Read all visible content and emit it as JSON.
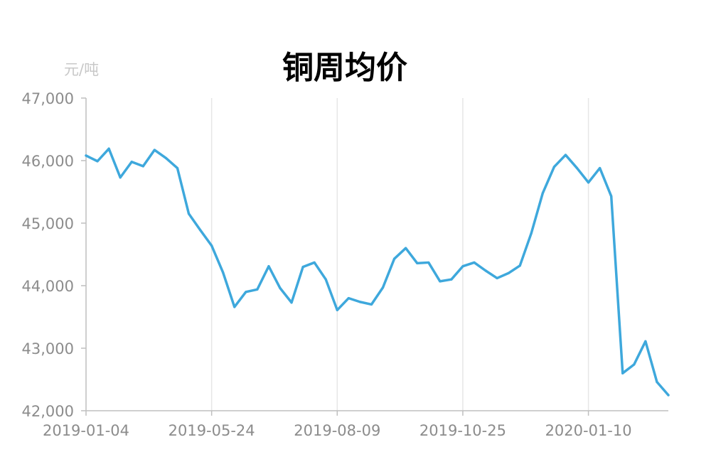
{
  "chart_data": {
    "type": "line",
    "title": "铜周均价",
    "ylabel": "元/吨",
    "xlabel": "",
    "ylim": [
      42000,
      47000
    ],
    "yticks": [
      42000,
      43000,
      44000,
      45000,
      46000,
      47000
    ],
    "ytick_labels": [
      "42,000",
      "43,000",
      "44,000",
      "45,000",
      "46,000",
      "47,000"
    ],
    "xtick_labels": [
      "2019-01-04",
      "2019-05-24",
      "2019-08-09",
      "2019-10-25",
      "2020-01-10"
    ],
    "xtick_index": [
      0,
      11,
      22,
      33,
      44
    ],
    "grid": "vertical",
    "legend": "none",
    "color": "#3ea8dc",
    "series": [
      {
        "values": [
          46080,
          45990,
          46190,
          45730,
          45980,
          45910,
          46170,
          46040,
          45880,
          45150,
          44890,
          44640,
          44210,
          43660,
          43900,
          43940,
          44310,
          43960,
          43730,
          44300,
          44370,
          44100,
          43610,
          43800,
          43740,
          43700,
          43970,
          44430,
          44600,
          44360,
          44370,
          44070,
          44100,
          44310,
          44370,
          44240,
          44120,
          44200,
          44320,
          44840,
          45480,
          45900,
          46090,
          45880,
          45650,
          45880,
          45430,
          42600,
          42740,
          43110,
          42460,
          42250
        ]
      }
    ]
  }
}
